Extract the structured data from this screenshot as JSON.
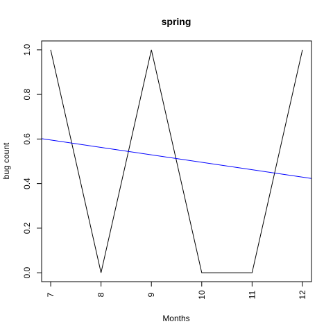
{
  "chart_data": {
    "type": "line",
    "title": "spring",
    "xlabel": "Months",
    "ylabel": "bug count",
    "xlim": [
      6.82,
      12.18
    ],
    "ylim": [
      -0.04,
      1.04
    ],
    "x_ticks": [
      7,
      8,
      9,
      10,
      11,
      12
    ],
    "y_ticks": [
      0.0,
      0.2,
      0.4,
      0.6,
      0.8,
      1.0
    ],
    "x_tick_labels": [
      "7",
      "8",
      "9",
      "10",
      "11",
      "12"
    ],
    "y_tick_labels": [
      "0.0",
      "0.2",
      "0.4",
      "0.6",
      "0.8",
      "1.0"
    ],
    "grid": false,
    "series": [
      {
        "color": "#000000",
        "x": [
          7,
          8,
          9,
          10,
          11,
          12
        ],
        "y": [
          1,
          0,
          1,
          0,
          0,
          1
        ]
      }
    ],
    "trend_line": {
      "color": "#0000ff",
      "intercept": 0.8286,
      "slope": -0.0333
    }
  }
}
